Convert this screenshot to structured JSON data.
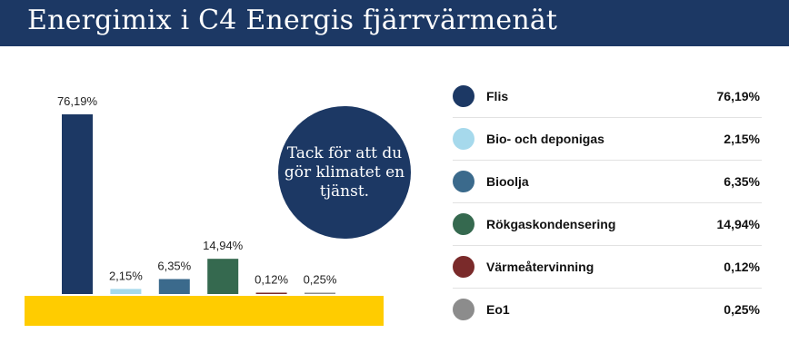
{
  "header": {
    "title": "Energimix i C4 Energis fjärrvärmenät"
  },
  "bubble": {
    "text": "Tack för att du gör klimatet en tjänst."
  },
  "chart_data": {
    "type": "bar",
    "title": "Energimix i C4 Energis fjärrvärmenät",
    "xlabel": "",
    "ylabel": "",
    "ylim": [
      0,
      100
    ],
    "categories": [
      "Flis",
      "Bio- och deponigas",
      "Bioolja",
      "Rökgaskondensering",
      "Värmeåtervinning",
      "Eo1"
    ],
    "values": [
      76.19,
      2.15,
      6.35,
      14.94,
      0.12,
      0.25
    ],
    "value_labels": [
      "76,19%",
      "2,15%",
      "6,35%",
      "14,94%",
      "0,12%",
      "0,25%"
    ],
    "colors": [
      "#1c3864",
      "#a6d9ec",
      "#3b6a8c",
      "#35694f",
      "#7a2a2a",
      "#8c8c8c"
    ],
    "baseline_color": "#ffcc00",
    "grid": false,
    "legend_position": "right"
  },
  "legend": {
    "items": [
      {
        "label": "Flis",
        "value": "76,19%"
      },
      {
        "label": "Bio- och deponigas",
        "value": "2,15%"
      },
      {
        "label": "Bioolja",
        "value": "6,35%"
      },
      {
        "label": "Rökgaskondensering",
        "value": "14,94%"
      },
      {
        "label": "Värmeåtervinning",
        "value": "0,12%"
      },
      {
        "label": "Eo1",
        "value": "0,25%"
      }
    ]
  }
}
